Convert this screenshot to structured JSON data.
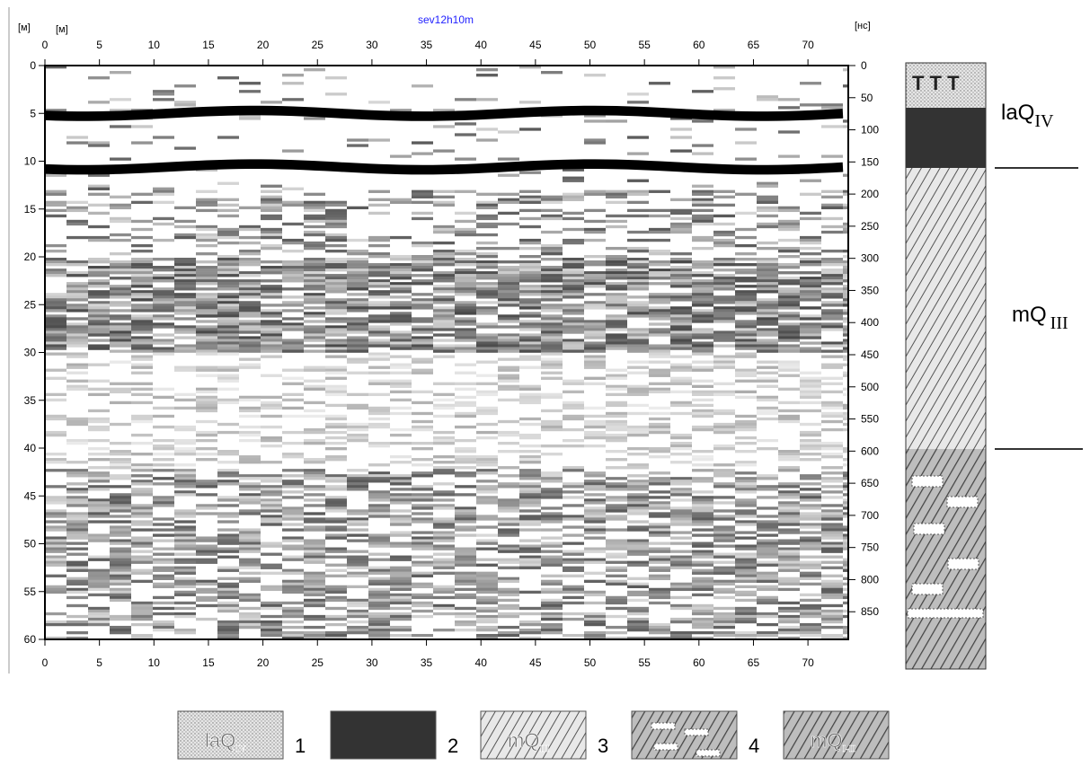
{
  "title": "sev12h10m",
  "axes": {
    "left_unit": "[м]",
    "top_unit": "[м]",
    "right_unit": "[нс]",
    "xlim": [
      0,
      73.7
    ],
    "xticks": [
      0,
      5,
      10,
      15,
      20,
      25,
      30,
      35,
      40,
      45,
      50,
      55,
      60,
      65,
      70
    ],
    "ylim": [
      0,
      60
    ],
    "yticks": [
      0,
      5,
      10,
      15,
      20,
      25,
      30,
      35,
      40,
      45,
      50,
      55,
      60
    ],
    "y2lim": [
      0,
      893
    ],
    "y2ticks": [
      0,
      50,
      100,
      150,
      200,
      250,
      300,
      350,
      400,
      450,
      500,
      550,
      600,
      650,
      700,
      750,
      800,
      850
    ]
  },
  "column_labels": [
    {
      "text": "laQ",
      "sub": "IV"
    },
    {
      "text": "mQ",
      "sub": "III"
    }
  ],
  "legend": [
    {
      "text": "laQ",
      "sub": "IV",
      "number": "1"
    },
    {
      "number": "2"
    },
    {
      "text": "mQ",
      "sub": "III",
      "number": "3"
    },
    {
      "number": "4"
    },
    {
      "text": "mQ",
      "sub": "I-II"
    }
  ]
}
